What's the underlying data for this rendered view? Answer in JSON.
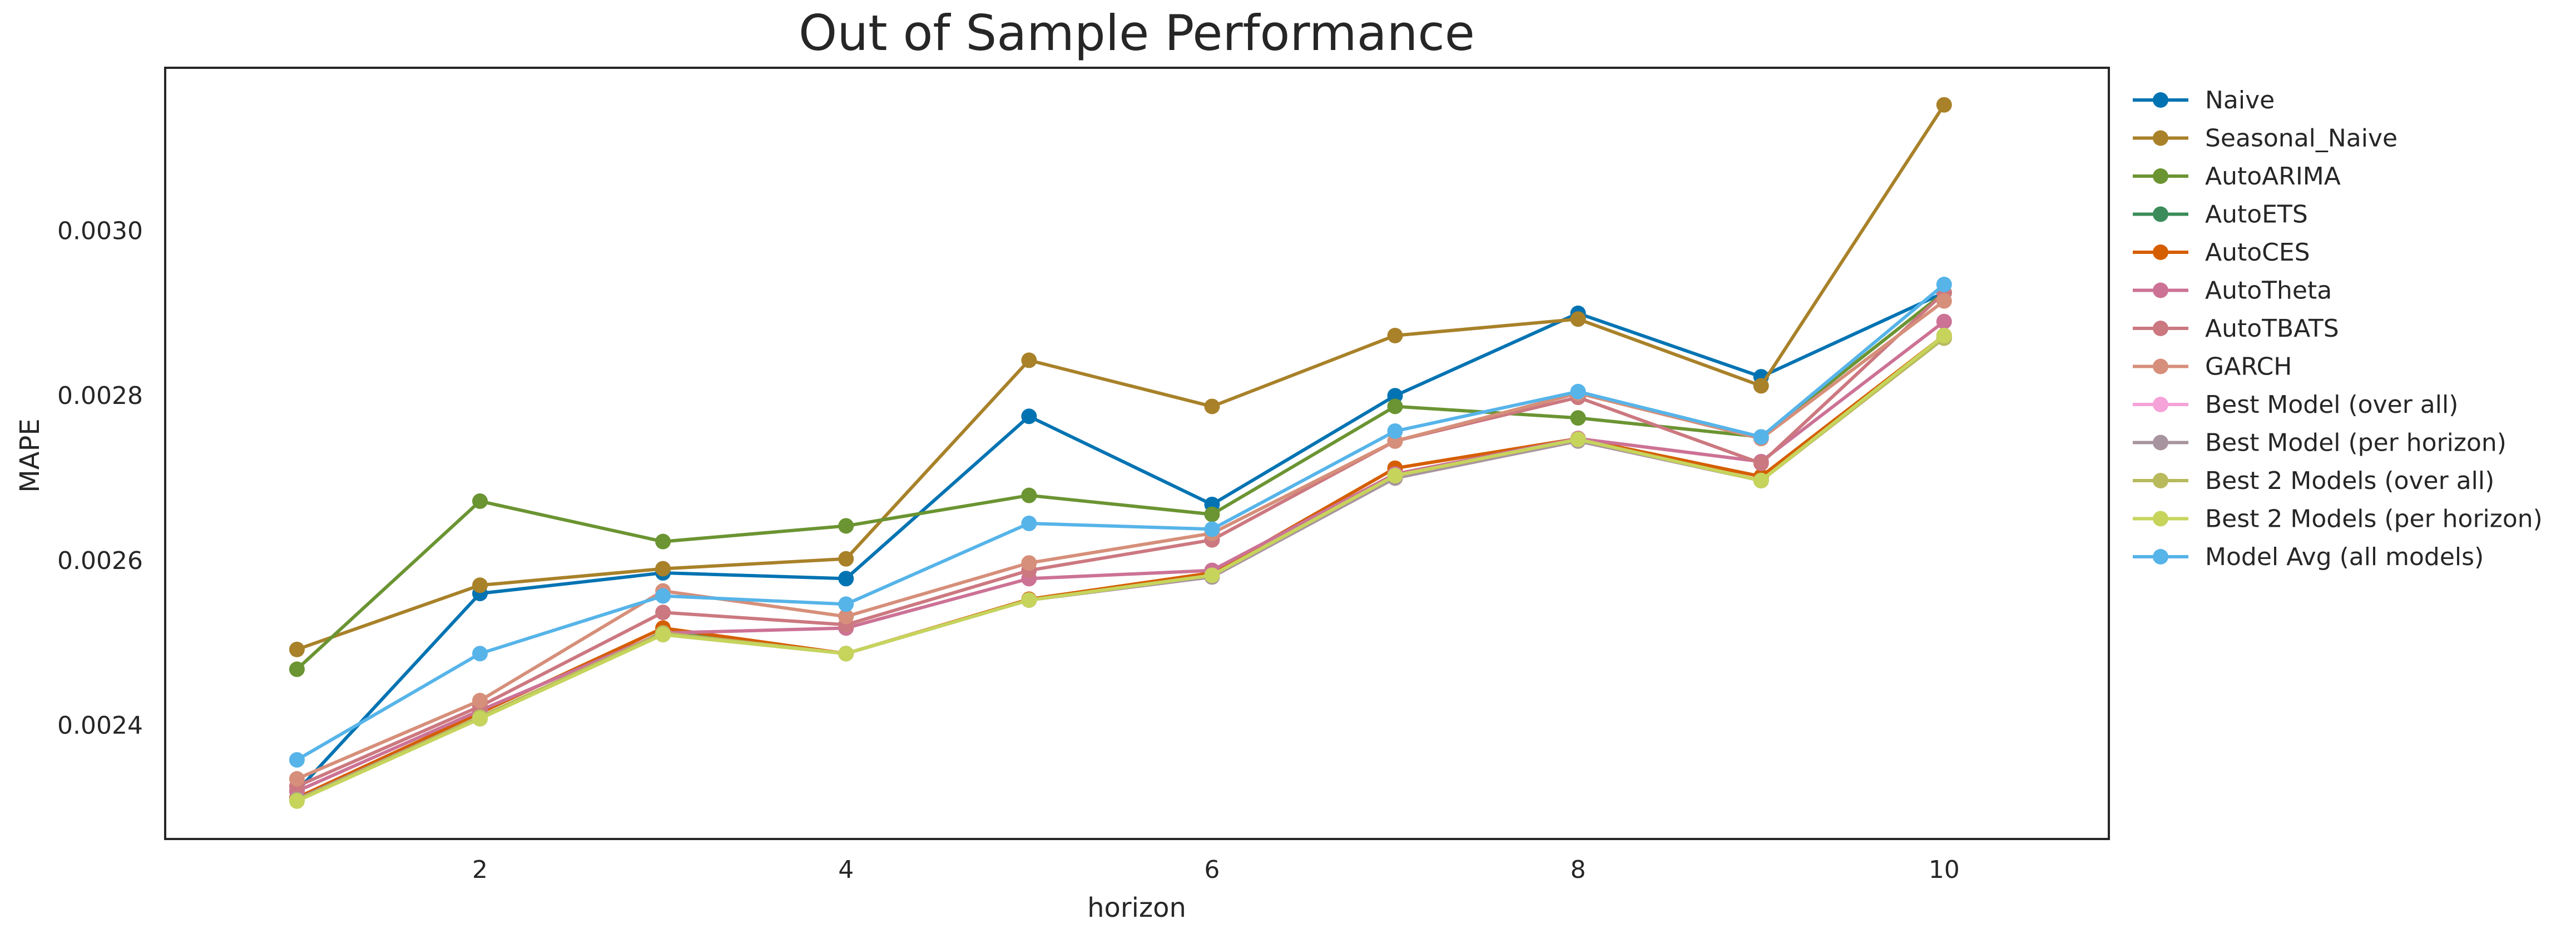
{
  "chart_data": {
    "type": "line",
    "title": "Out of Sample Performance",
    "xlabel": "horizon",
    "ylabel": "MAPE",
    "x": [
      1,
      2,
      3,
      4,
      5,
      6,
      7,
      8,
      9,
      10
    ],
    "xticks": [
      2,
      4,
      6,
      8,
      10
    ],
    "xlim": [
      0.28,
      10.9
    ],
    "yticks": [
      0.0024,
      0.0026,
      0.0028,
      0.003
    ],
    "ytick_labels": [
      "0.0024",
      "0.0026",
      "0.0028",
      "0.0030"
    ],
    "ylim": [
      0.002262,
      0.003198
    ],
    "grid": false,
    "legend_position": "outside-right",
    "series": [
      {
        "name": "Naive",
        "color": "#0173b2",
        "values": [
          0.00232,
          0.00256,
          0.002585,
          0.002578,
          0.002775,
          0.002668,
          0.0028,
          0.0029,
          0.002823,
          0.002925
        ]
      },
      {
        "name": "Seasonal_Naive",
        "color": "#a88129",
        "values": [
          0.002492,
          0.00257,
          0.00259,
          0.002602,
          0.002843,
          0.002787,
          0.002873,
          0.002893,
          0.002812,
          0.003153
        ]
      },
      {
        "name": "AutoARIMA",
        "color": "#6b9432",
        "values": [
          0.002468,
          0.002672,
          0.002623,
          0.002642,
          0.002679,
          0.002656,
          0.002787,
          0.002773,
          0.00275,
          0.002925
        ]
      },
      {
        "name": "AutoETS",
        "color": "#3b8c5a",
        "values": [
          0.00231,
          0.002408,
          0.002513,
          0.002487,
          0.002552,
          0.002582,
          0.002703,
          0.002747,
          0.002697,
          0.00287
        ]
      },
      {
        "name": "AutoCES",
        "color": "#d55e00",
        "values": [
          0.002312,
          0.002415,
          0.002518,
          0.002487,
          0.002553,
          0.002585,
          0.002712,
          0.002748,
          0.002702,
          0.002873
        ]
      },
      {
        "name": "AutoTheta",
        "color": "#cc7295",
        "values": [
          0.00232,
          0.002418,
          0.002512,
          0.002518,
          0.002578,
          0.002588,
          0.002705,
          0.002748,
          0.00272,
          0.00289
        ]
      },
      {
        "name": "AutoTBATS",
        "color": "#cc7880",
        "values": [
          0.002326,
          0.002423,
          0.002537,
          0.002522,
          0.002588,
          0.002625,
          0.002745,
          0.002798,
          0.002718,
          0.002925
        ]
      },
      {
        "name": "GARCH",
        "color": "#d68f7a",
        "values": [
          0.002335,
          0.00243,
          0.002563,
          0.002532,
          0.002597,
          0.002633,
          0.002745,
          0.002803,
          0.002748,
          0.002915
        ]
      },
      {
        "name": "Best Model (over all)",
        "color": "#f5a3d9",
        "values": [
          0.00231,
          0.00241,
          0.002512,
          0.002487,
          0.002552,
          0.002582,
          0.002703,
          0.002747,
          0.002697,
          0.00287
        ]
      },
      {
        "name": "Best Model (per horizon)",
        "color": "#a8949e",
        "values": [
          0.00231,
          0.00241,
          0.00251,
          0.002487,
          0.002552,
          0.00258,
          0.0027,
          0.002745,
          0.002697,
          0.00287
        ]
      },
      {
        "name": "Best 2 Models (over all)",
        "color": "#b8ba5c",
        "values": [
          0.002309,
          0.00241,
          0.002512,
          0.002487,
          0.002552,
          0.002582,
          0.002703,
          0.002747,
          0.002697,
          0.00287
        ]
      },
      {
        "name": "Best 2 Models (per horizon)",
        "color": "#c6d45c",
        "values": [
          0.002308,
          0.002408,
          0.00251,
          0.002487,
          0.002552,
          0.002582,
          0.002703,
          0.002747,
          0.002697,
          0.002873
        ]
      },
      {
        "name": "Model Avg (all models)",
        "color": "#56b4e9",
        "values": [
          0.002358,
          0.002487,
          0.002557,
          0.002547,
          0.002645,
          0.002638,
          0.002757,
          0.002805,
          0.00275,
          0.002935
        ]
      }
    ]
  }
}
